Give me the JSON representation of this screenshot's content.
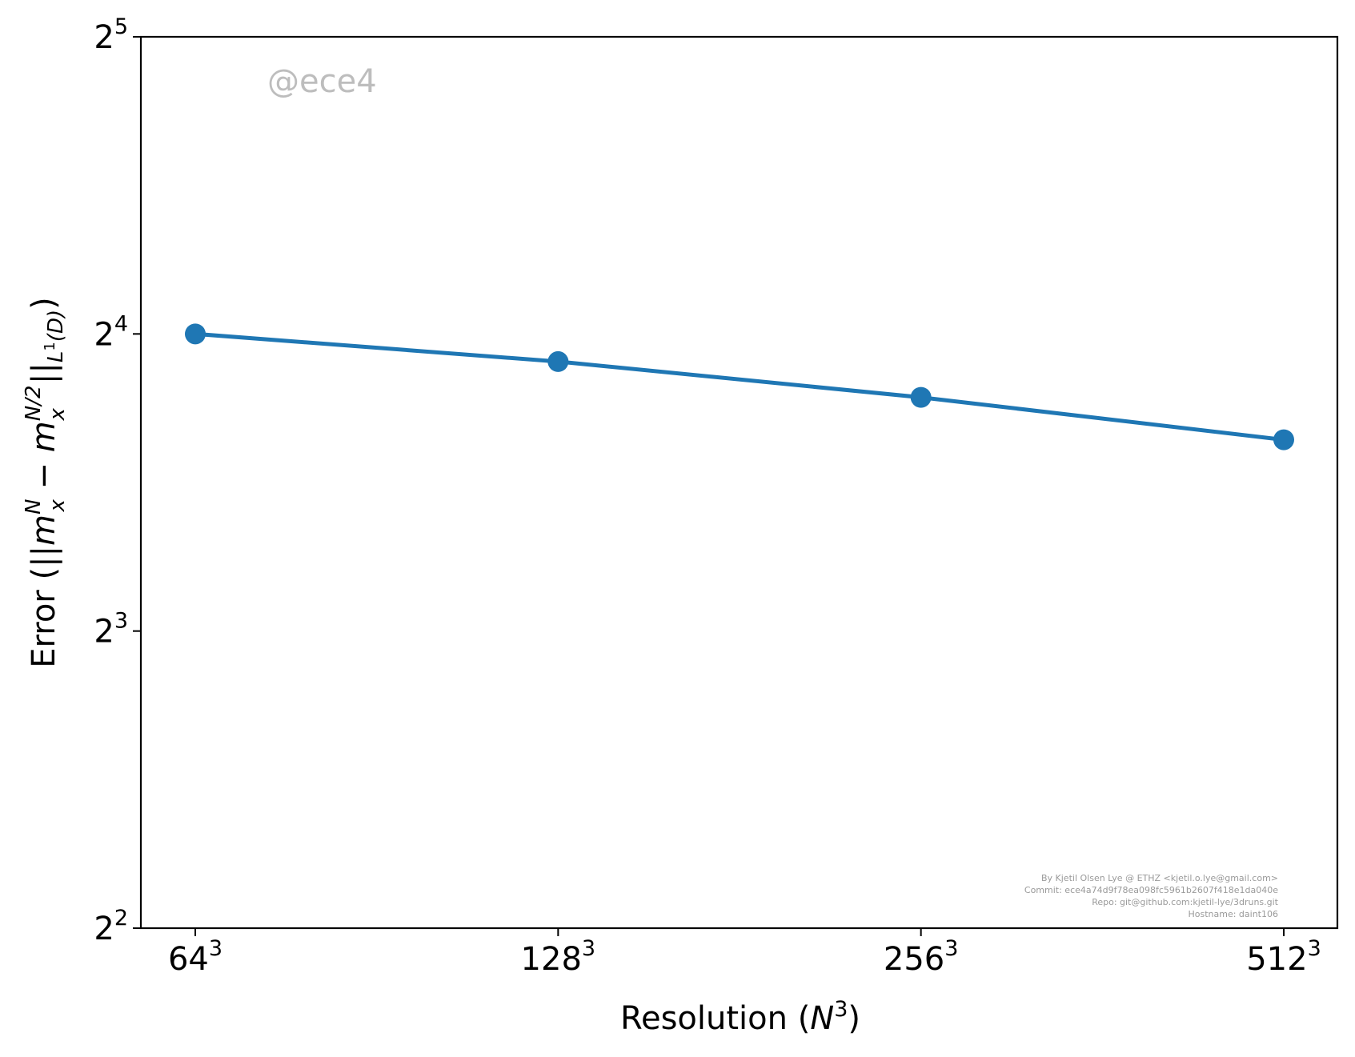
{
  "chart_data": {
    "type": "line",
    "x": [
      "64",
      "128",
      "256",
      "512"
    ],
    "x_numeric": [
      64,
      128,
      256,
      512
    ],
    "xscale": "log2",
    "yscale": "log2",
    "ylim": [
      4,
      32
    ],
    "series": [
      {
        "values": [
          16.0,
          15.0,
          13.8,
          12.5
        ],
        "color": "#1f77b4",
        "marker": "circle"
      }
    ],
    "x_ticks": [
      {
        "base": "64",
        "exp": "3"
      },
      {
        "base": "128",
        "exp": "3"
      },
      {
        "base": "256",
        "exp": "3"
      },
      {
        "base": "512",
        "exp": "3"
      }
    ],
    "y_ticks": [
      {
        "value": 4,
        "base": "2",
        "exp": "2"
      },
      {
        "value": 8,
        "base": "2",
        "exp": "3"
      },
      {
        "value": 16,
        "base": "2",
        "exp": "4"
      },
      {
        "value": 32,
        "base": "2",
        "exp": "5"
      }
    ],
    "xlabel": {
      "text": "Resolution (",
      "var": "N",
      "exp": "3",
      "close": ")"
    },
    "ylabel": {
      "prefix": "Error (||",
      "term1": "m",
      "term1_sub": "x",
      "term1_sup": "N",
      "minus": " − ",
      "term2": "m",
      "term2_sub": "x",
      "term2_sup": "N/2",
      "norm": "||",
      "norm_sub": "L",
      "norm_sub_sup": "1",
      "norm_sub_tail": "(D)",
      "suffix": ")"
    },
    "grid": false,
    "annotations": {
      "watermark": "@ece4",
      "credits": [
        "By Kjetil Olsen Lye @ ETHZ <kjetil.o.lye@gmail.com>",
        "Commit: ece4a74d9f78ea098fc5961b2607f418e1da040e",
        "Repo: git@github.com:kjetil-lye/3druns.git",
        "Hostname: daint106"
      ]
    }
  }
}
